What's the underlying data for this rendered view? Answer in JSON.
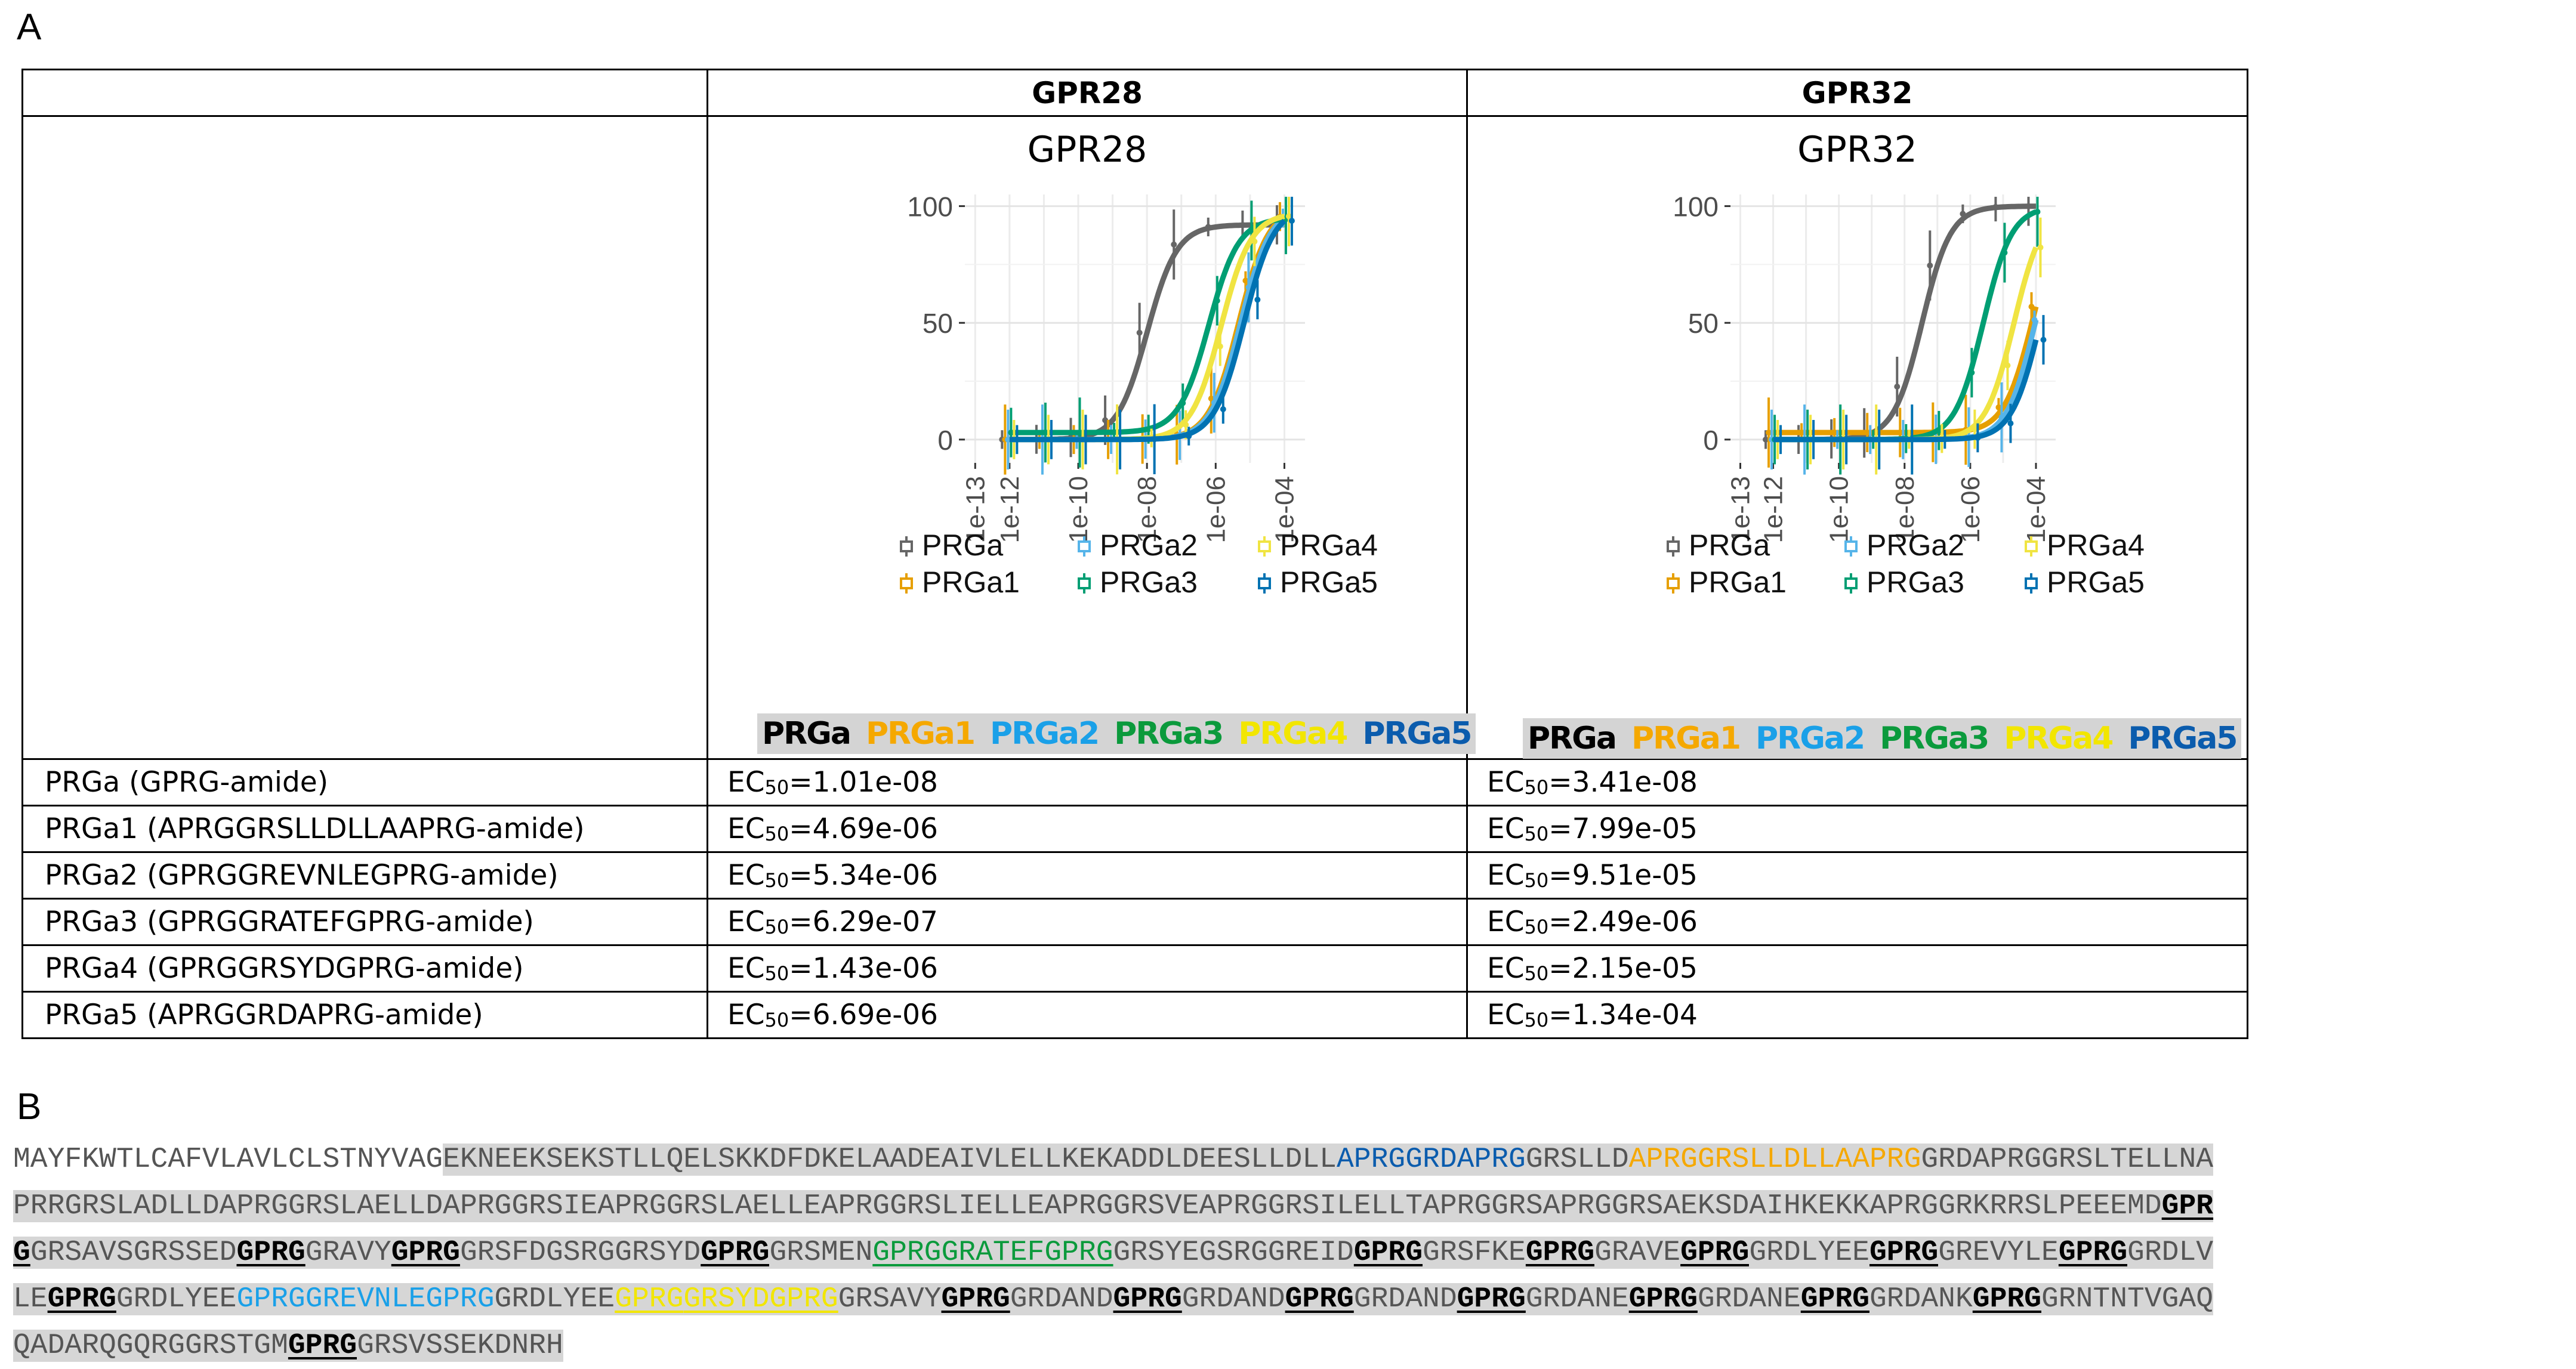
{
  "panel_a_label": "A",
  "panel_b_label": "B",
  "table": {
    "headers": [
      "",
      "GPR28",
      "GPR32"
    ],
    "rows": [
      {
        "peptide": "PRGa (GPRG-amide)",
        "gpr28": "1.01e-08",
        "gpr32": "3.41e-08"
      },
      {
        "peptide": "PRGa1 (APRGGRSLLDLLAAPRG-amide)",
        "gpr28": "4.69e-06",
        "gpr32": "7.99e-05"
      },
      {
        "peptide": "PRGa2 (GPRGGREVNLEGPRG-amide)",
        "gpr28": "5.34e-06",
        "gpr32": "9.51e-05"
      },
      {
        "peptide": "PRGa3 (GPRGGRATEFGPRG-amide)",
        "gpr28": "6.29e-07",
        "gpr32": "2.49e-06"
      },
      {
        "peptide": "PRGa4 (GPRGGRSYDGPRG-amide)",
        "gpr28": "1.43e-06",
        "gpr32": "2.15e-05"
      },
      {
        "peptide": "PRGa5 (APRGGRDAPRG-amide)",
        "gpr28": "6.69e-06",
        "gpr32": "1.34e-04"
      }
    ],
    "ec_prefix": "EC",
    "ec_sub": "50",
    "ec_eq": "="
  },
  "chart_data": [
    {
      "type": "line",
      "title": "GPR28",
      "xscale": "log",
      "xticks": [
        "1e-13",
        "1e-12",
        "1e-10",
        "1e-08",
        "1e-06",
        "1e-04"
      ],
      "yticks": [
        0,
        50,
        100
      ],
      "ylim": [
        -10,
        105
      ],
      "x": [
        1e-12,
        1e-11,
        1e-10,
        1e-09,
        1e-08,
        1e-07,
        1e-06,
        1e-05,
        0.0001
      ],
      "series": [
        {
          "name": "PRGa",
          "color": "#666666",
          "ec50": 1.01e-08,
          "bottom": 0,
          "top": 92
        },
        {
          "name": "PRGa1",
          "color": "#e69f00",
          "ec50": 4.69e-06,
          "bottom": 0,
          "top": 100
        },
        {
          "name": "PRGa2",
          "color": "#56b4e9",
          "ec50": 5.34e-06,
          "bottom": 0,
          "top": 100
        },
        {
          "name": "PRGa3",
          "color": "#009e73",
          "ec50": 6.29e-07,
          "bottom": 3,
          "top": 95
        },
        {
          "name": "PRGa4",
          "color": "#f0e442",
          "ec50": 1.43e-06,
          "bottom": 0,
          "top": 97
        },
        {
          "name": "PRGa5",
          "color": "#0072b2",
          "ec50": 6.69e-06,
          "bottom": 0,
          "top": 100
        }
      ],
      "legend_position": "bottom"
    },
    {
      "type": "line",
      "title": "GPR32",
      "xscale": "log",
      "xticks": [
        "1e-13",
        "1e-12",
        "1e-10",
        "1e-08",
        "1e-06",
        "1e-04"
      ],
      "yticks": [
        0,
        50,
        100
      ],
      "ylim": [
        -10,
        105
      ],
      "x": [
        1e-12,
        1e-11,
        1e-10,
        1e-09,
        1e-08,
        1e-07,
        1e-06,
        1e-05,
        0.0001
      ],
      "series": [
        {
          "name": "PRGa",
          "color": "#666666",
          "ec50": 3.41e-08,
          "bottom": 0,
          "top": 100
        },
        {
          "name": "PRGa1",
          "color": "#e69f00",
          "ec50": 7.99e-05,
          "bottom": 3,
          "top": 100
        },
        {
          "name": "PRGa2",
          "color": "#56b4e9",
          "ec50": 9.51e-05,
          "bottom": 0,
          "top": 100
        },
        {
          "name": "PRGa3",
          "color": "#009e73",
          "ec50": 2.49e-06,
          "bottom": 0,
          "top": 100
        },
        {
          "name": "PRGa4",
          "color": "#f0e442",
          "ec50": 2.15e-05,
          "bottom": 0,
          "top": 100
        },
        {
          "name": "PRGa5",
          "color": "#0072b2",
          "ec50": 0.000134,
          "bottom": 0,
          "top": 100
        }
      ],
      "legend_position": "bottom"
    }
  ],
  "legend_bar": [
    {
      "label": "PRGa",
      "color": "#000000"
    },
    {
      "label": "PRGa1",
      "color": "#f5a800"
    },
    {
      "label": "PRGa2",
      "color": "#1aa0e8"
    },
    {
      "label": "PRGa3",
      "color": "#0b9a3c"
    },
    {
      "label": "PRGa4",
      "color": "#f2e600"
    },
    {
      "label": "PRGa5",
      "color": "#0b5cad"
    }
  ],
  "sequence": {
    "lines": [
      [
        [
          "p",
          "MAYFKWTLCAFVLAVLCLSTNYVAG"
        ],
        [
          "b",
          "EKNEEKSEKSTLLQELSKKDFDKELAADEAIVLELLKEKADDLDEESLLDLL"
        ],
        [
          "dark",
          "APRGG"
        ],
        [
          "darksg",
          "R"
        ],
        [
          "dark",
          "DAPRG"
        ],
        [
          "sg",
          "GR"
        ],
        [
          "b",
          "SLLD"
        ],
        [
          "org",
          "APRGG"
        ],
        [
          "orgsg",
          "R"
        ],
        [
          "org",
          "SLLDLLAAPRG"
        ],
        [
          "sg",
          "GR"
        ],
        [
          "b",
          "DAPRG"
        ],
        [
          "sg",
          "GR"
        ],
        [
          "b",
          "SLTELLNA"
        ]
      ],
      [
        [
          "b",
          "PRR"
        ],
        [
          "sg",
          "GR"
        ],
        [
          "b",
          "SLADLLDAPRG"
        ],
        [
          "sg",
          "GR"
        ],
        [
          "b",
          "SLAELLDAPRG"
        ],
        [
          "sg",
          "GR"
        ],
        [
          "b",
          "SIEAPRG"
        ],
        [
          "sg",
          "GR"
        ],
        [
          "b",
          "SLAELLEAPRG"
        ],
        [
          "sg",
          "GR"
        ],
        [
          "b",
          "SLIELLEAPRG"
        ],
        [
          "sg",
          "GR"
        ],
        [
          "b",
          "SVEAPRG"
        ],
        [
          "sg",
          "GR"
        ],
        [
          "b",
          "SILELLTAPRG"
        ],
        [
          "sg",
          "GR"
        ],
        [
          "b",
          "SAPRG"
        ],
        [
          "sg",
          "GR"
        ],
        [
          "b",
          "SAEKSDAIHKEKKAPRG"
        ],
        [
          "sg",
          "GR"
        ],
        [
          "b",
          "KRRSLPEEEMD"
        ],
        [
          "u",
          "GPR"
        ]
      ],
      [
        [
          "u",
          "G"
        ],
        [
          "sg",
          "GR"
        ],
        [
          "b",
          "SAVS"
        ],
        [
          "sg",
          "GR"
        ],
        [
          "b",
          "SSED"
        ],
        [
          "u",
          "GPRG"
        ],
        [
          "sg",
          "GR"
        ],
        [
          "b",
          "AVY"
        ],
        [
          "u",
          "GPRG"
        ],
        [
          "sg",
          "GR"
        ],
        [
          "b",
          "SFDGSRG"
        ],
        [
          "sg",
          "GR"
        ],
        [
          "b",
          "SYD"
        ],
        [
          "u",
          "GPRG"
        ],
        [
          "sg",
          "GR"
        ],
        [
          "b",
          "SMEN"
        ],
        [
          "grn",
          "GPRGGRATEFGPRG"
        ],
        [
          "sg",
          "GR"
        ],
        [
          "b",
          "SYEGSRG"
        ],
        [
          "sg",
          "GR"
        ],
        [
          "b",
          "EID"
        ],
        [
          "u",
          "GPRG"
        ],
        [
          "sg",
          "GR"
        ],
        [
          "b",
          "SFKE"
        ],
        [
          "u",
          "GPRG"
        ],
        [
          "sg",
          "GR"
        ],
        [
          "b",
          "AVE"
        ],
        [
          "u",
          "GPRG"
        ],
        [
          "sg",
          "GR"
        ],
        [
          "b",
          "DLYEE"
        ],
        [
          "u",
          "GPRG"
        ],
        [
          "sg",
          "GR"
        ],
        [
          "b",
          "EVYLE"
        ],
        [
          "u",
          "GPRG"
        ],
        [
          "sg",
          "GR"
        ],
        [
          "b",
          "DLV"
        ]
      ],
      [
        [
          "b",
          "LE"
        ],
        [
          "u",
          "GPRG"
        ],
        [
          "sg",
          "GR"
        ],
        [
          "b",
          "DLYEE"
        ],
        [
          "sky",
          "GPRG"
        ],
        [
          "skysg",
          "GR"
        ],
        [
          "sky",
          "EVNLEGPRG"
        ],
        [
          "sg",
          "GR"
        ],
        [
          "b",
          "DLYEE"
        ],
        [
          "yel",
          "GPRG"
        ],
        [
          "yelsg",
          "GR"
        ],
        [
          "yel",
          "SYDGPRG"
        ],
        [
          "sg",
          "GR"
        ],
        [
          "b",
          "SAVY"
        ],
        [
          "u",
          "GPRG"
        ],
        [
          "sg",
          "GR"
        ],
        [
          "b",
          "DAND"
        ],
        [
          "u",
          "GPRG"
        ],
        [
          "sg",
          "GR"
        ],
        [
          "b",
          "DAND"
        ],
        [
          "u",
          "GPRG"
        ],
        [
          "sg",
          "GR"
        ],
        [
          "b",
          "DAND"
        ],
        [
          "u",
          "GPRG"
        ],
        [
          "sg",
          "GR"
        ],
        [
          "b",
          "DANE"
        ],
        [
          "u",
          "GPRG"
        ],
        [
          "sg",
          "GR"
        ],
        [
          "b",
          "DANE"
        ],
        [
          "u",
          "GPRG"
        ],
        [
          "sg",
          "GR"
        ],
        [
          "b",
          "DANK"
        ],
        [
          "u",
          "GPRG"
        ],
        [
          "sg",
          "GR"
        ],
        [
          "b",
          "NTNTVGAQ"
        ]
      ],
      [
        [
          "b",
          "QADARQGQRG"
        ],
        [
          "sg",
          "GR"
        ],
        [
          "b",
          "STGM"
        ],
        [
          "u",
          "GPRG"
        ],
        [
          "sg",
          "GR"
        ],
        [
          "b",
          "SVSSEKDNRH"
        ]
      ]
    ]
  }
}
